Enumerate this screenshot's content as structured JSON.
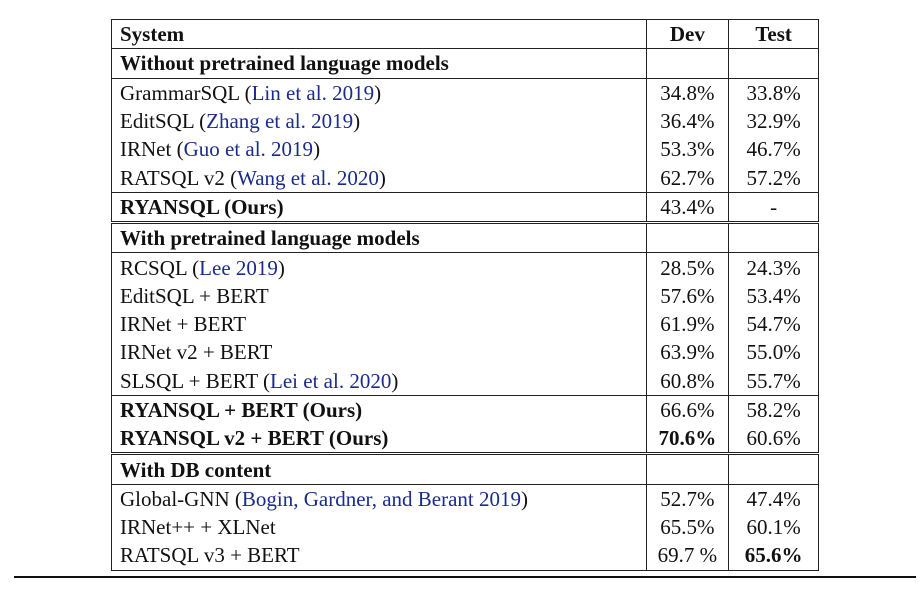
{
  "header": {
    "system": "System",
    "dev": "Dev",
    "test": "Test"
  },
  "sections": [
    {
      "title": "Without pretrained language models",
      "rows": [
        {
          "name": "GrammarSQL",
          "cite": "Lin et al. 2019",
          "dev": "34.8%",
          "test": "33.8%"
        },
        {
          "name": "EditSQL",
          "cite": "Zhang et al. 2019",
          "dev": "36.4%",
          "test": "32.9%"
        },
        {
          "name": "IRNet",
          "cite": "Guo et al. 2019",
          "dev": "53.3%",
          "test": "46.7%"
        },
        {
          "name": "RATSQL v2",
          "cite": "Wang et al. 2020",
          "dev": "62.7%",
          "test": "57.2%"
        },
        {
          "name": "RYANSQL (Ours)",
          "ours": true,
          "dev": "43.4%",
          "test": "-"
        }
      ]
    },
    {
      "title": "With pretrained language models",
      "rows": [
        {
          "name": "RCSQL",
          "cite": "Lee 2019",
          "dev": "28.5%",
          "test": "24.3%"
        },
        {
          "name": "EditSQL + BERT",
          "dev": "57.6%",
          "test": "53.4%"
        },
        {
          "name": "IRNet + BERT",
          "dev": "61.9%",
          "test": "54.7%"
        },
        {
          "name": "IRNet v2 + BERT",
          "dev": "63.9%",
          "test": "55.0%"
        },
        {
          "name": "SLSQL + BERT",
          "cite": "Lei et al. 2020",
          "dev": "60.8%",
          "test": "55.7%"
        },
        {
          "name": "RYANSQL + BERT (Ours)",
          "ours": true,
          "dev": "66.6%",
          "test": "58.2%"
        },
        {
          "name": "RYANSQL v2 + BERT (Ours)",
          "ours": true,
          "dev": "70.6%",
          "dev_bold": true,
          "test": "60.6%"
        }
      ]
    },
    {
      "title": "With DB content",
      "rows": [
        {
          "name": "Global-GNN",
          "cite": "Bogin, Gardner, and Berant 2019",
          "dev": "52.7%",
          "test": "47.4%"
        },
        {
          "name": "IRNet++ + XLNet",
          "dev": "65.5%",
          "test": "60.1%"
        },
        {
          "name": "RATSQL v3 + BERT",
          "dev": "69.7 %",
          "test": "65.6%",
          "test_bold": true
        }
      ]
    }
  ]
}
